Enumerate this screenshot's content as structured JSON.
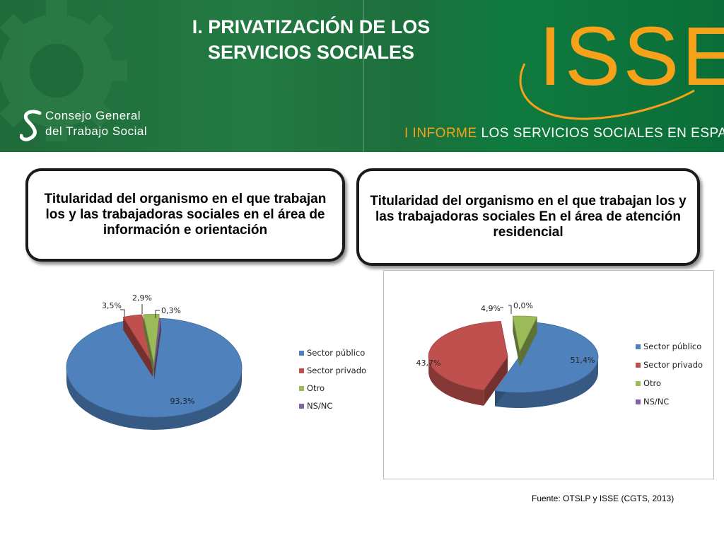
{
  "header": {
    "title_line1": "I.    PRIVATIZACIÓN DE LOS",
    "title_line2": "SERVICIOS SOCIALES",
    "org_line1": "Consejo  General",
    "org_line2": "del  Trabajo Social",
    "isse_logo": "ISSE",
    "report_highlight": "I  INFORME",
    "report_rest": "LOS  SERVICIOS  SOCIALES  EN  ESPAÑA"
  },
  "boxes": [
    {
      "text": "Titularidad del organismo en el que trabajan los y las trabajadoras sociales en el área de información e orientación"
    },
    {
      "text": "Titularidad del organismo en el que trabajan los y las trabajadoras sociales En el área de atención residencial"
    }
  ],
  "colors": {
    "sector_publico": "#4f81bd",
    "sector_privado": "#c0504d",
    "otro": "#9bbb59",
    "ns_nc": "#8064a2",
    "logo_orange": "#f5a11a",
    "header_green": "#1f6b3a"
  },
  "chart_data": [
    {
      "type": "pie",
      "categories": [
        "Sector público",
        "Sector privado",
        "Otro",
        "NS/NC"
      ],
      "values": [
        93.3,
        3.5,
        2.9,
        0.3
      ],
      "labels": [
        "93,3%",
        "3,5%",
        "2,9%",
        "0,3%"
      ],
      "legend": [
        "Sector público",
        "Sector privado",
        "Otro",
        "NS/NC"
      ],
      "legend_position": "right"
    },
    {
      "type": "pie",
      "categories": [
        "Sector público",
        "Sector privado",
        "Otro",
        "NS/NC"
      ],
      "values": [
        51.4,
        43.7,
        4.9,
        0.0
      ],
      "labels": [
        "51,4%",
        "43,7%",
        "4,9%",
        "0,0%"
      ],
      "legend": [
        "Sector público",
        "Sector privado",
        "Otro",
        "NS/NC"
      ],
      "legend_position": "right"
    }
  ],
  "source": "Fuente: OTSLP y ISSE (CGTS, 2013)"
}
